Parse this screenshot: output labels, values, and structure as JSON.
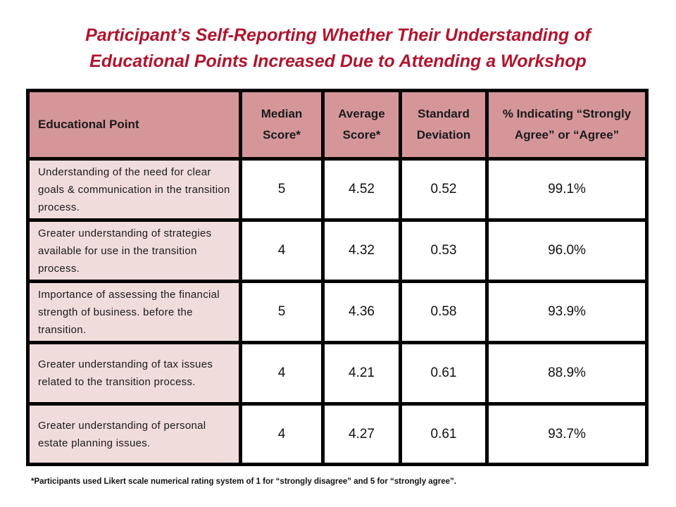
{
  "title": {
    "line1": "Participant’s  Self-Reporting Whether Their Understanding of",
    "line2": "Educational Points Increased Due to Attending a Workshop"
  },
  "table": {
    "headers": [
      "Educational Point",
      "Median Score*",
      "Average Score*",
      "Standard Deviation",
      "% Indicating “Strongly Agree” or “Agree”"
    ],
    "rows": [
      {
        "point": "Understanding of the need for clear goals & communication in the transition process.",
        "median": "5",
        "average": "4.52",
        "sd": "0.52",
        "pct": "99.1%"
      },
      {
        "point": "Greater understanding of strategies available for use in the transition process.",
        "median": "4",
        "average": "4.32",
        "sd": "0.53",
        "pct": "96.0%"
      },
      {
        "point": "Importance of assessing the financial strength of business. before the transition.",
        "median": "5",
        "average": "4.36",
        "sd": "0.58",
        "pct": "93.9%"
      },
      {
        "point": "Greater understanding of tax issues related to the transition process.",
        "median": "4",
        "average": "4.21",
        "sd": "0.61",
        "pct": "88.9%"
      },
      {
        "point": "Greater understanding of personal estate planning issues.",
        "median": "4",
        "average": "4.27",
        "sd": "0.61",
        "pct": "93.7%"
      }
    ]
  },
  "footnote": "*Participants used Likert scale numerical rating system of 1 for “strongly disagree” and 5 for “strongly agree”.",
  "colors": {
    "title": "#b0152e",
    "header_bg": "#d5969a",
    "first_col_bg": "#f1dcdc",
    "border": "#000000"
  }
}
